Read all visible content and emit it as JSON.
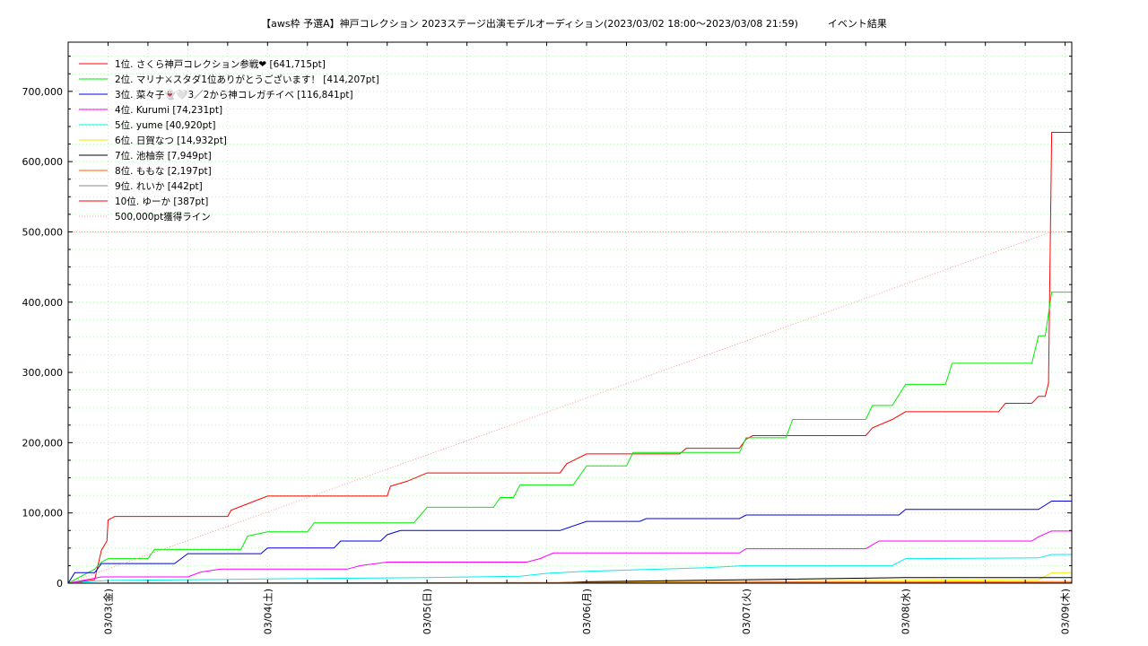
{
  "title": "【aws枠 予選A】神戸コレクション 2023ステージ出演モデルオーディション(2023/03/02 18:00〜2023/03/08 21:59)　　　イベント結果",
  "chart_data": {
    "type": "line",
    "title": "【aws枠 予選A】神戸コレクション 2023ステージ出演モデルオーディション(2023/03/02 18:00〜2023/03/08 21:59)　　　イベント結果",
    "xlabel": "",
    "ylabel": "",
    "x_unit": "date",
    "xlim": [
      "2023-03-02 18:00",
      "2023-03-09 01:00"
    ],
    "ylim": [
      0,
      770000
    ],
    "y_ticks": [
      0,
      100000,
      200000,
      300000,
      400000,
      500000,
      600000,
      700000
    ],
    "y_tick_labels": [
      "0",
      "100,000",
      "200,000",
      "300,000",
      "400,000",
      "500,000",
      "600,000",
      "700,000"
    ],
    "x_ticks": [
      "2023-03-03 00:00",
      "2023-03-04 00:00",
      "2023-03-05 00:00",
      "2023-03-06 00:00",
      "2023-03-07 00:00",
      "2023-03-08 00:00",
      "2023-03-09 00:00"
    ],
    "x_tick_labels": [
      "03/03(金)",
      "03/04(土)",
      "03/05(日)",
      "03/06(月)",
      "03/07(火)",
      "03/08(水)",
      "03/09(木)"
    ],
    "grid": true,
    "legend_position": "top-left",
    "series": [
      {
        "name": "1位. さくら神戸コレクション参戦❤ [641,715pt]",
        "color": "#ff0000",
        "style": "solid",
        "points": [
          [
            "2023-03-02 18:00",
            0
          ],
          [
            "2023-03-02 22:00",
            5000
          ],
          [
            "2023-03-02 23:00",
            47000
          ],
          [
            "2023-03-02 23:50",
            60000
          ],
          [
            "2023-03-03 00:00",
            90000
          ],
          [
            "2023-03-03 01:00",
            95000
          ],
          [
            "2023-03-03 18:00",
            95000
          ],
          [
            "2023-03-03 18:30",
            104000
          ],
          [
            "2023-03-03 21:00",
            113000
          ],
          [
            "2023-03-04 00:00",
            124000
          ],
          [
            "2023-03-04 18:00",
            124000
          ],
          [
            "2023-03-04 18:30",
            138000
          ],
          [
            "2023-03-04 21:00",
            145000
          ],
          [
            "2023-03-05 00:00",
            157000
          ],
          [
            "2023-03-05 20:00",
            157000
          ],
          [
            "2023-03-05 21:00",
            170000
          ],
          [
            "2023-03-06 00:00",
            184000
          ],
          [
            "2023-03-06 14:00",
            184000
          ],
          [
            "2023-03-06 15:00",
            192000
          ],
          [
            "2023-03-06 23:00",
            192000
          ],
          [
            "2023-03-07 00:00",
            205000
          ],
          [
            "2023-03-07 01:00",
            210000
          ],
          [
            "2023-03-07 18:00",
            210000
          ],
          [
            "2023-03-07 19:00",
            221000
          ],
          [
            "2023-03-07 22:00",
            233000
          ],
          [
            "2023-03-08 00:00",
            244000
          ],
          [
            "2023-03-08 14:00",
            244000
          ],
          [
            "2023-03-08 15:00",
            256000
          ],
          [
            "2023-03-08 19:00",
            256000
          ],
          [
            "2023-03-08 20:00",
            266000
          ],
          [
            "2023-03-08 21:00",
            266000
          ],
          [
            "2023-03-08 21:30",
            285000
          ],
          [
            "2023-03-08 21:59",
            641715
          ],
          [
            "2023-03-09 01:00",
            641715
          ]
        ]
      },
      {
        "name": "2位. マリナ⚔スタダ1位ありがとうございます！ [414,207pt]",
        "color": "#00ee00",
        "style": "solid",
        "points": [
          [
            "2023-03-02 18:00",
            0
          ],
          [
            "2023-03-02 22:00",
            20000
          ],
          [
            "2023-03-02 23:00",
            30000
          ],
          [
            "2023-03-03 00:00",
            35000
          ],
          [
            "2023-03-03 06:00",
            35000
          ],
          [
            "2023-03-03 07:00",
            48000
          ],
          [
            "2023-03-03 20:00",
            48000
          ],
          [
            "2023-03-03 21:00",
            67000
          ],
          [
            "2023-03-04 00:00",
            73000
          ],
          [
            "2023-03-04 06:00",
            73000
          ],
          [
            "2023-03-04 07:00",
            86000
          ],
          [
            "2023-03-04 22:00",
            86000
          ],
          [
            "2023-03-05 00:00",
            108000
          ],
          [
            "2023-03-05 10:00",
            108000
          ],
          [
            "2023-03-05 11:00",
            122000
          ],
          [
            "2023-03-05 13:00",
            122000
          ],
          [
            "2023-03-05 14:00",
            140000
          ],
          [
            "2023-03-05 22:00",
            140000
          ],
          [
            "2023-03-06 00:00",
            167000
          ],
          [
            "2023-03-06 06:00",
            167000
          ],
          [
            "2023-03-06 07:00",
            186000
          ],
          [
            "2023-03-06 23:00",
            186000
          ],
          [
            "2023-03-07 00:00",
            207000
          ],
          [
            "2023-03-07 06:00",
            207000
          ],
          [
            "2023-03-07 07:00",
            233000
          ],
          [
            "2023-03-07 18:00",
            233000
          ],
          [
            "2023-03-07 19:00",
            253000
          ],
          [
            "2023-03-07 22:00",
            253000
          ],
          [
            "2023-03-08 00:00",
            283000
          ],
          [
            "2023-03-08 06:00",
            283000
          ],
          [
            "2023-03-08 07:00",
            313000
          ],
          [
            "2023-03-08 19:00",
            313000
          ],
          [
            "2023-03-08 20:00",
            352000
          ],
          [
            "2023-03-08 21:00",
            352000
          ],
          [
            "2023-03-08 21:59",
            414207
          ],
          [
            "2023-03-09 01:00",
            414207
          ]
        ]
      },
      {
        "name": "3位. 菜々子👻🤍3／2から神コレガチイベ [116,841pt]",
        "color": "#0000dd",
        "style": "solid",
        "points": [
          [
            "2023-03-02 18:00",
            0
          ],
          [
            "2023-03-02 19:00",
            15000
          ],
          [
            "2023-03-02 22:00",
            15000
          ],
          [
            "2023-03-02 23:00",
            28000
          ],
          [
            "2023-03-03 10:00",
            28000
          ],
          [
            "2023-03-03 12:00",
            42000
          ],
          [
            "2023-03-03 23:00",
            42000
          ],
          [
            "2023-03-04 00:00",
            50000
          ],
          [
            "2023-03-04 10:00",
            50000
          ],
          [
            "2023-03-04 11:00",
            60000
          ],
          [
            "2023-03-04 17:00",
            60000
          ],
          [
            "2023-03-04 18:00",
            69000
          ],
          [
            "2023-03-04 20:00",
            75000
          ],
          [
            "2023-03-05 20:00",
            75000
          ],
          [
            "2023-03-06 00:00",
            88000
          ],
          [
            "2023-03-06 08:00",
            88000
          ],
          [
            "2023-03-06 09:00",
            92000
          ],
          [
            "2023-03-06 23:00",
            92000
          ],
          [
            "2023-03-07 00:00",
            97000
          ],
          [
            "2023-03-07 23:00",
            97000
          ],
          [
            "2023-03-08 00:00",
            105000
          ],
          [
            "2023-03-08 20:00",
            105000
          ],
          [
            "2023-03-08 21:59",
            116841
          ],
          [
            "2023-03-09 01:00",
            116841
          ]
        ]
      },
      {
        "name": "4位. Kurumi [74,231pt]",
        "color": "#ff00ff",
        "style": "solid",
        "points": [
          [
            "2023-03-02 18:00",
            0
          ],
          [
            "2023-03-02 23:00",
            9000
          ],
          [
            "2023-03-03 12:00",
            9000
          ],
          [
            "2023-03-03 14:00",
            16000
          ],
          [
            "2023-03-03 17:00",
            20000
          ],
          [
            "2023-03-04 12:00",
            20000
          ],
          [
            "2023-03-04 14:00",
            25000
          ],
          [
            "2023-03-04 18:00",
            30000
          ],
          [
            "2023-03-05 15:00",
            30000
          ],
          [
            "2023-03-05 17:00",
            35000
          ],
          [
            "2023-03-05 19:00",
            43000
          ],
          [
            "2023-03-06 23:00",
            43000
          ],
          [
            "2023-03-07 00:00",
            49000
          ],
          [
            "2023-03-07 18:00",
            49000
          ],
          [
            "2023-03-07 20:00",
            60000
          ],
          [
            "2023-03-08 19:00",
            60000
          ],
          [
            "2023-03-08 20:00",
            66000
          ],
          [
            "2023-03-08 21:59",
            74231
          ],
          [
            "2023-03-09 01:00",
            74231
          ]
        ]
      },
      {
        "name": "5位. yume [40,920pt]",
        "color": "#00eeee",
        "style": "solid",
        "points": [
          [
            "2023-03-02 18:00",
            0
          ],
          [
            "2023-03-03 00:00",
            4000
          ],
          [
            "2023-03-04 00:00",
            6000
          ],
          [
            "2023-03-05 00:00",
            8000
          ],
          [
            "2023-03-05 14:00",
            10000
          ],
          [
            "2023-03-05 18:00",
            14000
          ],
          [
            "2023-03-06 00:00",
            17000
          ],
          [
            "2023-03-06 18:00",
            22000
          ],
          [
            "2023-03-07 00:00",
            25000
          ],
          [
            "2023-03-07 22:00",
            25000
          ],
          [
            "2023-03-08 00:00",
            35000
          ],
          [
            "2023-03-08 20:00",
            36000
          ],
          [
            "2023-03-08 21:59",
            40920
          ],
          [
            "2023-03-09 01:00",
            40920
          ]
        ]
      },
      {
        "name": "6位. 日賀なつ [14,932pt]",
        "color": "#eeee00",
        "style": "solid",
        "points": [
          [
            "2023-03-05 18:00",
            0
          ],
          [
            "2023-03-06 00:00",
            2000
          ],
          [
            "2023-03-08 20:00",
            5000
          ],
          [
            "2023-03-08 21:00",
            10000
          ],
          [
            "2023-03-08 21:59",
            14932
          ],
          [
            "2023-03-09 01:00",
            14932
          ]
        ]
      },
      {
        "name": "7位. 池柚奈 [7,949pt]",
        "color": "#000000",
        "style": "solid",
        "points": [
          [
            "2023-03-02 18:00",
            0
          ],
          [
            "2023-03-05 18:00",
            0
          ],
          [
            "2023-03-06 00:00",
            2000
          ],
          [
            "2023-03-07 00:00",
            5000
          ],
          [
            "2023-03-08 00:00",
            7949
          ],
          [
            "2023-03-09 01:00",
            7949
          ]
        ]
      },
      {
        "name": "8位. ももな [2,197pt]",
        "color": "#ff6600",
        "style": "solid",
        "points": [
          [
            "2023-03-02 18:00",
            0
          ],
          [
            "2023-03-06 00:00",
            1000
          ],
          [
            "2023-03-08 21:59",
            2197
          ],
          [
            "2023-03-09 01:00",
            2197
          ]
        ]
      },
      {
        "name": "9位. れいか [442pt]",
        "color": "#888888",
        "style": "solid",
        "points": [
          [
            "2023-03-02 18:00",
            0
          ],
          [
            "2023-03-09 01:00",
            442
          ]
        ]
      },
      {
        "name": "10位. ゆーか [387pt]",
        "color": "#ff0000",
        "style": "solid",
        "points": [
          [
            "2023-03-02 18:00",
            0
          ],
          [
            "2023-03-09 01:00",
            387
          ]
        ]
      },
      {
        "name": "500,000pt獲得ライン",
        "color": "#ff9999",
        "style": "dotted",
        "points": [
          [
            "2023-03-02 18:00",
            0
          ],
          [
            "2023-03-08 21:59",
            500000
          ]
        ]
      }
    ],
    "reference_lines": [
      {
        "axis": "y",
        "value": 500000,
        "color": "#ff9999",
        "style": "dotted"
      }
    ],
    "colors": {
      "background": "#ffffff",
      "grid": "#a0f0a0",
      "axis": "#000000"
    }
  }
}
